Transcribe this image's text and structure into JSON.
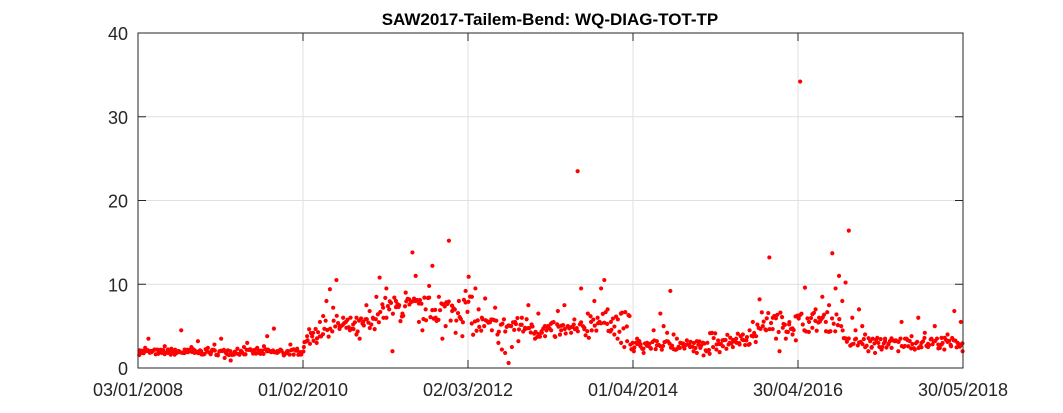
{
  "chart_data": {
    "type": "scatter",
    "title": "SAW2017-Tailem-Bend: WQ-DIAG-TOT-TP",
    "xlabel": "",
    "ylabel": "",
    "x_axis_type": "date",
    "xlim": [
      "2008-01-03",
      "2018-05-30"
    ],
    "ylim": [
      0,
      40
    ],
    "xticks": [
      {
        "date": "2008-01-03",
        "label": "03/01/2008"
      },
      {
        "date": "2010-02-01",
        "label": "01/02/2010"
      },
      {
        "date": "2012-03-02",
        "label": "02/03/2012"
      },
      {
        "date": "2014-04-01",
        "label": "01/04/2014"
      },
      {
        "date": "2016-04-30",
        "label": "30/04/2016"
      },
      {
        "date": "2018-05-30",
        "label": "30/05/2018"
      }
    ],
    "yticks": [
      {
        "value": 0,
        "label": "0"
      },
      {
        "value": 10,
        "label": "10"
      },
      {
        "value": 20,
        "label": "20"
      },
      {
        "value": 30,
        "label": "30"
      },
      {
        "value": 40,
        "label": "40"
      }
    ],
    "grid": true,
    "marker_color": "#ff0000",
    "points": [
      [
        "2008-01-10",
        2.1
      ],
      [
        "2008-01-20",
        1.8
      ],
      [
        "2008-02-05",
        2.4
      ],
      [
        "2008-02-20",
        3.5
      ],
      [
        "2008-03-05",
        1.9
      ],
      [
        "2008-03-20",
        2.2
      ],
      [
        "2008-04-05",
        1.7
      ],
      [
        "2008-04-20",
        2.0
      ],
      [
        "2008-05-05",
        2.6
      ],
      [
        "2008-05-20",
        1.8
      ],
      [
        "2008-06-05",
        2.3
      ],
      [
        "2008-06-20",
        1.6
      ],
      [
        "2008-07-05",
        2.0
      ],
      [
        "2008-07-20",
        4.5
      ],
      [
        "2008-08-05",
        2.2
      ],
      [
        "2008-08-20",
        1.9
      ],
      [
        "2008-09-05",
        2.5
      ],
      [
        "2008-09-20",
        1.8
      ],
      [
        "2008-10-05",
        3.2
      ],
      [
        "2008-10-20",
        2.0
      ],
      [
        "2008-11-05",
        1.7
      ],
      [
        "2008-11-20",
        2.4
      ],
      [
        "2008-12-05",
        1.9
      ],
      [
        "2008-12-20",
        2.8
      ],
      [
        "2009-01-05",
        1.5
      ],
      [
        "2009-01-20",
        3.5
      ],
      [
        "2009-02-05",
        1.2
      ],
      [
        "2009-02-20",
        2.1
      ],
      [
        "2009-03-05",
        0.9
      ],
      [
        "2009-03-20",
        1.6
      ],
      [
        "2009-04-05",
        2.3
      ],
      [
        "2009-04-20",
        1.8
      ],
      [
        "2009-05-05",
        2.5
      ],
      [
        "2009-05-20",
        3.0
      ],
      [
        "2009-06-05",
        2.2
      ],
      [
        "2009-06-20",
        1.9
      ],
      [
        "2009-07-05",
        2.4
      ],
      [
        "2009-07-20",
        1.7
      ],
      [
        "2009-08-05",
        2.6
      ],
      [
        "2009-08-20",
        3.8
      ],
      [
        "2009-09-05",
        2.0
      ],
      [
        "2009-09-20",
        4.7
      ],
      [
        "2009-10-05",
        1.8
      ],
      [
        "2009-10-20",
        2.2
      ],
      [
        "2009-11-05",
        1.5
      ],
      [
        "2009-11-20",
        2.0
      ],
      [
        "2009-12-05",
        2.8
      ],
      [
        "2009-12-20",
        1.6
      ],
      [
        "2010-01-05",
        2.3
      ],
      [
        "2010-01-20",
        1.9
      ],
      [
        "2010-02-05",
        2.5
      ],
      [
        "2010-02-20",
        3.8
      ],
      [
        "2010-03-05",
        2.9
      ],
      [
        "2010-03-20",
        4.2
      ],
      [
        "2010-04-05",
        3.0
      ],
      [
        "2010-04-20",
        5.5
      ],
      [
        "2010-05-05",
        6.2
      ],
      [
        "2010-05-20",
        8.0
      ],
      [
        "2010-06-05",
        9.4
      ],
      [
        "2010-06-20",
        7.2
      ],
      [
        "2010-07-05",
        10.5
      ],
      [
        "2010-07-20",
        5.0
      ],
      [
        "2010-08-05",
        6.0
      ],
      [
        "2010-08-20",
        4.8
      ],
      [
        "2010-09-05",
        4.5
      ],
      [
        "2010-09-20",
        5.2
      ],
      [
        "2010-10-05",
        4.0
      ],
      [
        "2010-10-20",
        3.5
      ],
      [
        "2010-11-05",
        5.5
      ],
      [
        "2010-11-20",
        7.5
      ],
      [
        "2010-12-05",
        6.8
      ],
      [
        "2010-12-20",
        6.0
      ],
      [
        "2011-01-05",
        8.5
      ],
      [
        "2011-01-20",
        10.8
      ],
      [
        "2011-02-05",
        7.2
      ],
      [
        "2011-02-20",
        9.5
      ],
      [
        "2011-03-05",
        7.0
      ],
      [
        "2011-03-20",
        2.0
      ],
      [
        "2011-04-05",
        8.0
      ],
      [
        "2011-04-20",
        7.5
      ],
      [
        "2011-05-05",
        6.5
      ],
      [
        "2011-05-20",
        9.0
      ],
      [
        "2011-06-05",
        8.2
      ],
      [
        "2011-06-20",
        13.8
      ],
      [
        "2011-07-05",
        11.0
      ],
      [
        "2011-07-20",
        5.5
      ],
      [
        "2011-08-05",
        4.5
      ],
      [
        "2011-08-20",
        7.0
      ],
      [
        "2011-09-05",
        9.8
      ],
      [
        "2011-09-20",
        12.2
      ],
      [
        "2011-10-05",
        6.0
      ],
      [
        "2011-10-20",
        8.5
      ],
      [
        "2011-11-05",
        3.5
      ],
      [
        "2011-11-20",
        5.0
      ],
      [
        "2011-12-05",
        15.2
      ],
      [
        "2011-12-20",
        6.8
      ],
      [
        "2012-01-05",
        4.2
      ],
      [
        "2012-01-20",
        8.0
      ],
      [
        "2012-02-05",
        3.8
      ],
      [
        "2012-02-20",
        9.2
      ],
      [
        "2012-03-05",
        10.9
      ],
      [
        "2012-03-20",
        8.5
      ],
      [
        "2012-04-05",
        9.5
      ],
      [
        "2012-04-20",
        7.0
      ],
      [
        "2012-05-05",
        6.0
      ],
      [
        "2012-05-20",
        8.3
      ],
      [
        "2012-06-05",
        5.5
      ],
      [
        "2012-06-20",
        4.5
      ],
      [
        "2012-07-05",
        7.2
      ],
      [
        "2012-07-20",
        3.0
      ],
      [
        "2012-08-05",
        2.2
      ],
      [
        "2012-08-20",
        1.8
      ],
      [
        "2012-09-05",
        0.6
      ],
      [
        "2012-09-20",
        2.5
      ],
      [
        "2012-10-05",
        5.5
      ],
      [
        "2012-10-20",
        3.2
      ],
      [
        "2012-11-05",
        6.0
      ],
      [
        "2012-11-20",
        4.8
      ],
      [
        "2012-12-05",
        7.5
      ],
      [
        "2012-12-20",
        5.2
      ],
      [
        "2013-01-05",
        3.5
      ],
      [
        "2013-01-20",
        6.5
      ],
      [
        "2013-02-05",
        4.2
      ],
      [
        "2013-02-20",
        3.8
      ],
      [
        "2013-03-05",
        5.0
      ],
      [
        "2013-03-20",
        4.5
      ],
      [
        "2013-04-05",
        3.8
      ],
      [
        "2013-04-20",
        6.8
      ],
      [
        "2013-05-05",
        4.5
      ],
      [
        "2013-05-20",
        7.5
      ],
      [
        "2013-06-05",
        5.0
      ],
      [
        "2013-06-20",
        4.2
      ],
      [
        "2013-07-05",
        5.8
      ],
      [
        "2013-07-20",
        23.5
      ],
      [
        "2013-08-05",
        9.5
      ],
      [
        "2013-08-20",
        4.8
      ],
      [
        "2013-09-05",
        6.5
      ],
      [
        "2013-09-20",
        5.5
      ],
      [
        "2013-10-05",
        8.0
      ],
      [
        "2013-10-20",
        6.0
      ],
      [
        "2013-11-05",
        9.5
      ],
      [
        "2013-11-20",
        10.5
      ],
      [
        "2013-12-05",
        7.0
      ],
      [
        "2013-12-20",
        5.5
      ],
      [
        "2014-01-05",
        4.0
      ],
      [
        "2014-01-20",
        3.5
      ],
      [
        "2014-02-05",
        3.0
      ],
      [
        "2014-02-20",
        2.5
      ],
      [
        "2014-03-05",
        3.2
      ],
      [
        "2014-03-20",
        2.8
      ],
      [
        "2014-04-05",
        2.0
      ],
      [
        "2014-04-20",
        3.5
      ],
      [
        "2014-05-05",
        2.6
      ],
      [
        "2014-05-20",
        1.8
      ],
      [
        "2014-06-05",
        3.0
      ],
      [
        "2014-06-20",
        2.4
      ],
      [
        "2014-07-05",
        4.5
      ],
      [
        "2014-07-20",
        3.2
      ],
      [
        "2014-08-05",
        6.5
      ],
      [
        "2014-08-20",
        5.0
      ],
      [
        "2014-09-05",
        4.2
      ],
      [
        "2014-09-20",
        9.2
      ],
      [
        "2014-10-05",
        4.0
      ],
      [
        "2014-10-20",
        3.5
      ],
      [
        "2014-11-05",
        3.0
      ],
      [
        "2014-11-20",
        2.6
      ],
      [
        "2014-12-05",
        3.3
      ],
      [
        "2014-12-20",
        2.5
      ],
      [
        "2015-01-05",
        2.0
      ],
      [
        "2015-01-20",
        1.8
      ],
      [
        "2015-02-05",
        2.4
      ],
      [
        "2015-02-20",
        1.5
      ],
      [
        "2015-03-05",
        2.0
      ],
      [
        "2015-03-20",
        1.7
      ],
      [
        "2015-04-05",
        2.5
      ],
      [
        "2015-04-20",
        2.2
      ],
      [
        "2015-05-05",
        1.9
      ],
      [
        "2015-05-20",
        2.6
      ],
      [
        "2015-06-05",
        2.3
      ],
      [
        "2015-06-20",
        3.0
      ],
      [
        "2015-07-05",
        2.5
      ],
      [
        "2015-07-20",
        3.5
      ],
      [
        "2015-08-05",
        2.8
      ],
      [
        "2015-08-20",
        4.0
      ],
      [
        "2015-09-05",
        3.3
      ],
      [
        "2015-09-20",
        4.5
      ],
      [
        "2015-10-05",
        5.5
      ],
      [
        "2015-10-20",
        3.8
      ],
      [
        "2015-11-05",
        8.2
      ],
      [
        "2015-11-20",
        5.0
      ],
      [
        "2015-12-05",
        4.5
      ],
      [
        "2015-12-20",
        13.2
      ],
      [
        "2016-01-05",
        6.0
      ],
      [
        "2016-01-20",
        3.5
      ],
      [
        "2016-02-05",
        2.0
      ],
      [
        "2016-02-20",
        4.8
      ],
      [
        "2016-03-05",
        3.5
      ],
      [
        "2016-03-20",
        5.2
      ],
      [
        "2016-04-05",
        4.0
      ],
      [
        "2016-04-20",
        3.3
      ],
      [
        "2016-05-10",
        34.2
      ],
      [
        "2016-06-01",
        9.6
      ],
      [
        "2016-06-20",
        5.5
      ],
      [
        "2016-07-05",
        4.8
      ],
      [
        "2016-07-20",
        7.0
      ],
      [
        "2016-08-05",
        6.0
      ],
      [
        "2016-08-20",
        8.5
      ],
      [
        "2016-09-05",
        5.5
      ],
      [
        "2016-09-20",
        7.5
      ],
      [
        "2016-10-05",
        13.7
      ],
      [
        "2016-10-20",
        9.5
      ],
      [
        "2016-11-05",
        11.0
      ],
      [
        "2016-11-20",
        8.0
      ],
      [
        "2016-12-05",
        10.2
      ],
      [
        "2016-12-20",
        16.4
      ],
      [
        "2017-01-05",
        6.0
      ],
      [
        "2017-01-20",
        4.5
      ],
      [
        "2017-02-05",
        7.0
      ],
      [
        "2017-02-20",
        5.0
      ],
      [
        "2017-03-05",
        4.0
      ],
      [
        "2017-03-20",
        2.0
      ],
      [
        "2017-04-05",
        2.5
      ],
      [
        "2017-04-20",
        1.8
      ],
      [
        "2017-05-05",
        3.0
      ],
      [
        "2017-05-20",
        2.2
      ],
      [
        "2017-06-05",
        3.5
      ],
      [
        "2017-06-20",
        2.8
      ],
      [
        "2017-07-05",
        2.4
      ],
      [
        "2017-07-20",
        3.2
      ],
      [
        "2017-08-05",
        2.0
      ],
      [
        "2017-08-20",
        5.5
      ],
      [
        "2017-09-05",
        3.5
      ],
      [
        "2017-09-20",
        2.6
      ],
      [
        "2017-10-05",
        3.8
      ],
      [
        "2017-10-20",
        2.2
      ],
      [
        "2017-11-05",
        6.0
      ],
      [
        "2017-11-20",
        3.0
      ],
      [
        "2017-12-05",
        4.2
      ],
      [
        "2017-12-20",
        2.5
      ],
      [
        "2018-01-05",
        3.5
      ],
      [
        "2018-01-20",
        5.0
      ],
      [
        "2018-02-05",
        2.8
      ],
      [
        "2018-02-20",
        3.6
      ],
      [
        "2018-03-05",
        2.2
      ],
      [
        "2018-03-20",
        4.0
      ],
      [
        "2018-04-05",
        2.6
      ],
      [
        "2018-04-20",
        6.8
      ],
      [
        "2018-05-05",
        3.0
      ],
      [
        "2018-05-20",
        5.5
      ],
      [
        "2018-05-28",
        2.0
      ]
    ]
  }
}
